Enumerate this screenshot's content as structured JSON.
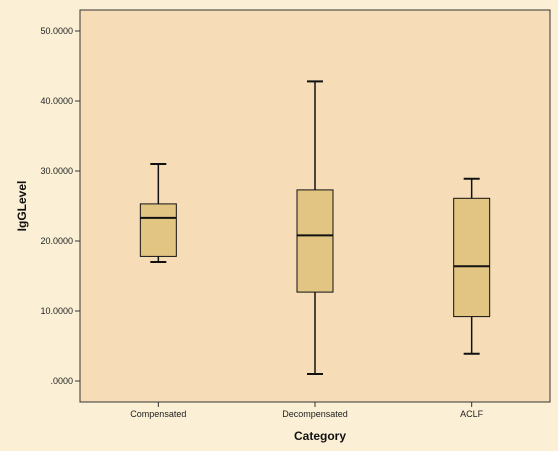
{
  "chart_data": {
    "type": "boxplot",
    "xlabel": "Category",
    "ylabel": "IgGLevel",
    "ylim": [
      -3,
      53
    ],
    "yticks": [
      0,
      10,
      20,
      30,
      40,
      50
    ],
    "ytick_labels": [
      ".0000",
      "10.0000",
      "20.0000",
      "30.0000",
      "40.0000",
      "50.0000"
    ],
    "categories": [
      "Compensated",
      "Decompensated",
      "ACLF"
    ],
    "boxes": [
      {
        "category": "Compensated",
        "min": 17,
        "q1": 17.8,
        "median": 23.3,
        "q3": 25.3,
        "max": 31.0
      },
      {
        "category": "Decompensated",
        "min": 1.0,
        "q1": 12.7,
        "median": 20.8,
        "q3": 27.3,
        "max": 42.8
      },
      {
        "category": "ACLF",
        "min": 3.9,
        "q1": 9.2,
        "median": 16.4,
        "q3": 26.1,
        "max": 28.9
      }
    ],
    "colors": {
      "background": "#fbf0d5",
      "plot_area": "#f6ddb8",
      "box_fill": "#e2c583",
      "line": "#111111"
    },
    "grid": false,
    "legend": "none"
  }
}
